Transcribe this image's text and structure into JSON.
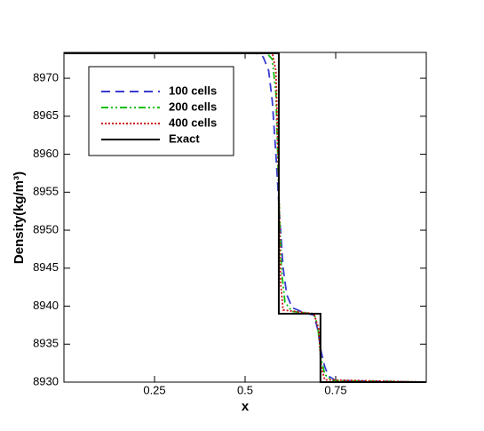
{
  "chart_data": {
    "type": "line",
    "xlabel": "x",
    "ylabel": "Density(kg/m³)",
    "xlim": [
      0,
      1
    ],
    "ylim": [
      8930,
      8973.4
    ],
    "xticks": [
      0.25,
      0.5,
      0.75
    ],
    "yticks": [
      8930,
      8935,
      8940,
      8945,
      8950,
      8955,
      8960,
      8965,
      8970
    ],
    "legend": "upper left",
    "series": [
      {
        "name": "100 cells",
        "color": "#3a3ad0",
        "dash": "10,6",
        "x": [
          0,
          0.53,
          0.55,
          0.565,
          0.575,
          0.585,
          0.595,
          0.605,
          0.615,
          0.63,
          0.66,
          0.69,
          0.7,
          0.71,
          0.72,
          0.73,
          0.75,
          1
        ],
        "values": [
          8973.3,
          8973.3,
          8972.8,
          8971,
          8967,
          8960,
          8952,
          8945,
          8941.5,
          8939.8,
          8939.2,
          8938.8,
          8937,
          8934,
          8932,
          8930.8,
          8930.2,
          8930
        ]
      },
      {
        "name": "200 cells",
        "color": "#10c010",
        "dash": "8,3,2,3,2,3",
        "x": [
          0,
          0.56,
          0.575,
          0.585,
          0.593,
          0.6,
          0.61,
          0.63,
          0.69,
          0.7,
          0.71,
          0.72,
          0.74,
          1
        ],
        "values": [
          8973.3,
          8973.3,
          8972.5,
          8968,
          8955,
          8945,
          8940.5,
          8939.3,
          8939,
          8937.5,
          8933,
          8931,
          8930.2,
          8930
        ]
      },
      {
        "name": "400 cells",
        "color": "#cc1010",
        "dash": "2,2",
        "x": [
          0,
          0.575,
          0.585,
          0.593,
          0.598,
          0.605,
          0.69,
          0.703,
          0.71,
          0.72,
          1
        ],
        "values": [
          8973.3,
          8973.3,
          8971,
          8956,
          8943,
          8939.5,
          8939,
          8937,
          8932,
          8930.3,
          8930
        ]
      },
      {
        "name": "Exact",
        "color": "#000000",
        "dash": "none",
        "x": [
          0,
          0.593,
          0.593,
          0.708,
          0.708,
          1
        ],
        "values": [
          8973.3,
          8973.3,
          8939,
          8939,
          8930,
          8930
        ]
      }
    ]
  }
}
